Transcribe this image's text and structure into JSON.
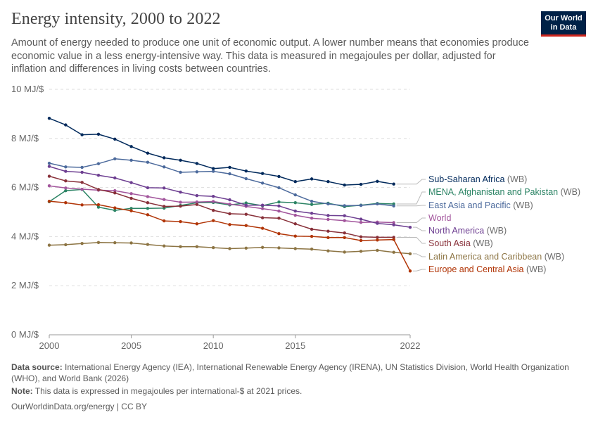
{
  "header": {
    "title": "Energy intensity, 2000 to 2022",
    "subtitle": "Amount of energy needed to produce one unit of economic output. A lower number means that economies produce economic value in a less energy-intensive way. This data is measured in megajoules per dollar, adjusted for inflation and differences in living costs between countries.",
    "logo_line1": "Our World",
    "logo_line2": "in Data"
  },
  "footer": {
    "source_label": "Data source:",
    "source_text": "International Energy Agency (IEA), International Renewable Energy Agency (IRENA), UN Statistics Division, World Health Organization (WHO), and World Bank (2026)",
    "note_label": "Note:",
    "note_text": "This data is expressed in megajoules per international-$ at 2021 prices.",
    "site": "OurWorldinData.org/energy",
    "license": "| CC BY"
  },
  "colors": {
    "grid": "#dddddd",
    "axis": "#999999",
    "label_line": "#bbbbbb"
  },
  "chart_data": {
    "type": "line",
    "title": "Energy intensity, 2000 to 2022",
    "xlim": [
      2000,
      2022
    ],
    "ylim": [
      0,
      10
    ],
    "x_ticks": [
      "2000",
      "2005",
      "2010",
      "2015",
      "2022"
    ],
    "x_tick_values": [
      2000,
      2005,
      2010,
      2015,
      2022
    ],
    "y_ticks": [
      "0 MJ/$",
      "2 MJ/$",
      "4 MJ/$",
      "6 MJ/$",
      "8 MJ/$",
      "10 MJ/$"
    ],
    "y_tick_values": [
      0,
      2,
      4,
      6,
      8,
      10
    ],
    "grid": "horizontal dashed",
    "legend": "right, inline labels",
    "series": [
      {
        "name": "Sub-Saharan Africa",
        "suffix": "(WB)",
        "color": "#00295b",
        "x": [
          2000,
          2001,
          2002,
          2003,
          2004,
          2005,
          2006,
          2007,
          2008,
          2009,
          2010,
          2011,
          2012,
          2013,
          2014,
          2015,
          2016,
          2017,
          2018,
          2019,
          2020,
          2021
        ],
        "values": [
          8.82,
          8.55,
          8.15,
          8.17,
          7.97,
          7.67,
          7.4,
          7.21,
          7.11,
          6.98,
          6.77,
          6.82,
          6.67,
          6.57,
          6.45,
          6.24,
          6.35,
          6.24,
          6.1,
          6.13,
          6.25,
          6.14
        ]
      },
      {
        "name": "MENA, Afghanistan and Pakistan",
        "suffix": "(WB)",
        "color": "#2c8465",
        "x": [
          2000,
          2001,
          2002,
          2003,
          2004,
          2005,
          2006,
          2007,
          2008,
          2009,
          2010,
          2011,
          2012,
          2013,
          2014,
          2015,
          2016,
          2017,
          2018,
          2019,
          2020,
          2021
        ],
        "values": [
          5.42,
          5.87,
          5.92,
          5.2,
          5.07,
          5.15,
          5.15,
          5.16,
          5.27,
          5.38,
          5.39,
          5.29,
          5.37,
          5.26,
          5.41,
          5.38,
          5.31,
          5.36,
          5.22,
          5.28,
          5.35,
          5.33
        ]
      },
      {
        "name": "East Asia and Pacific",
        "suffix": "(WB)",
        "color": "#4c6a9c",
        "x": [
          2000,
          2001,
          2002,
          2003,
          2004,
          2005,
          2006,
          2007,
          2008,
          2009,
          2010,
          2011,
          2012,
          2013,
          2014,
          2015,
          2016,
          2017,
          2018,
          2019,
          2020,
          2021
        ],
        "values": [
          6.99,
          6.84,
          6.82,
          6.97,
          7.17,
          7.11,
          7.03,
          6.84,
          6.62,
          6.64,
          6.66,
          6.56,
          6.36,
          6.18,
          5.99,
          5.7,
          5.44,
          5.33,
          5.26,
          5.27,
          5.33,
          5.25
        ]
      },
      {
        "name": "World",
        "suffix": "",
        "color": "#a2559c",
        "x": [
          2000,
          2001,
          2002,
          2003,
          2004,
          2005,
          2006,
          2007,
          2008,
          2009,
          2010,
          2011,
          2012,
          2013,
          2014,
          2015,
          2016,
          2017,
          2018,
          2019,
          2020,
          2021
        ],
        "values": [
          6.07,
          5.98,
          5.93,
          5.89,
          5.87,
          5.75,
          5.63,
          5.51,
          5.4,
          5.41,
          5.43,
          5.32,
          5.23,
          5.14,
          5.04,
          4.87,
          4.75,
          4.7,
          4.65,
          4.58,
          4.59,
          4.57
        ]
      },
      {
        "name": "North America",
        "suffix": "(WB)",
        "color": "#6d3e91",
        "x": [
          2000,
          2001,
          2002,
          2003,
          2004,
          2005,
          2006,
          2007,
          2008,
          2009,
          2010,
          2011,
          2012,
          2013,
          2014,
          2015,
          2016,
          2017,
          2018,
          2019,
          2020,
          2021,
          2022
        ],
        "values": [
          6.86,
          6.66,
          6.62,
          6.5,
          6.39,
          6.2,
          5.99,
          5.98,
          5.81,
          5.67,
          5.64,
          5.5,
          5.28,
          5.28,
          5.25,
          5.04,
          4.95,
          4.86,
          4.85,
          4.71,
          4.54,
          4.48,
          4.38
        ]
      },
      {
        "name": "South Asia",
        "suffix": "(WB)",
        "color": "#883039",
        "x": [
          2000,
          2001,
          2002,
          2003,
          2004,
          2005,
          2006,
          2007,
          2008,
          2009,
          2010,
          2011,
          2012,
          2013,
          2014,
          2015,
          2016,
          2017,
          2018,
          2019,
          2020,
          2021
        ],
        "values": [
          6.46,
          6.27,
          6.21,
          5.92,
          5.78,
          5.56,
          5.38,
          5.23,
          5.24,
          5.31,
          5.07,
          4.93,
          4.91,
          4.77,
          4.75,
          4.52,
          4.3,
          4.22,
          4.15,
          3.99,
          3.97,
          3.97
        ]
      },
      {
        "name": "Latin America and Caribbean",
        "suffix": "(WB)",
        "color": "#8c7443",
        "x": [
          2000,
          2001,
          2002,
          2003,
          2004,
          2005,
          2006,
          2007,
          2008,
          2009,
          2010,
          2011,
          2012,
          2013,
          2014,
          2015,
          2016,
          2017,
          2018,
          2019,
          2020,
          2021,
          2022
        ],
        "values": [
          3.65,
          3.67,
          3.72,
          3.76,
          3.75,
          3.74,
          3.68,
          3.62,
          3.59,
          3.59,
          3.55,
          3.51,
          3.53,
          3.56,
          3.54,
          3.51,
          3.49,
          3.42,
          3.37,
          3.4,
          3.44,
          3.36,
          3.3
        ]
      },
      {
        "name": "Europe and Central Asia",
        "suffix": "(WB)",
        "color": "#b13507",
        "x": [
          2000,
          2001,
          2002,
          2003,
          2004,
          2005,
          2006,
          2007,
          2008,
          2009,
          2010,
          2011,
          2012,
          2013,
          2014,
          2015,
          2016,
          2017,
          2018,
          2019,
          2020,
          2021,
          2022
        ],
        "values": [
          5.44,
          5.38,
          5.29,
          5.3,
          5.17,
          5.05,
          4.89,
          4.64,
          4.61,
          4.52,
          4.65,
          4.49,
          4.45,
          4.34,
          4.12,
          4.02,
          4.01,
          3.96,
          3.96,
          3.84,
          3.86,
          3.88,
          2.6
        ]
      }
    ]
  }
}
